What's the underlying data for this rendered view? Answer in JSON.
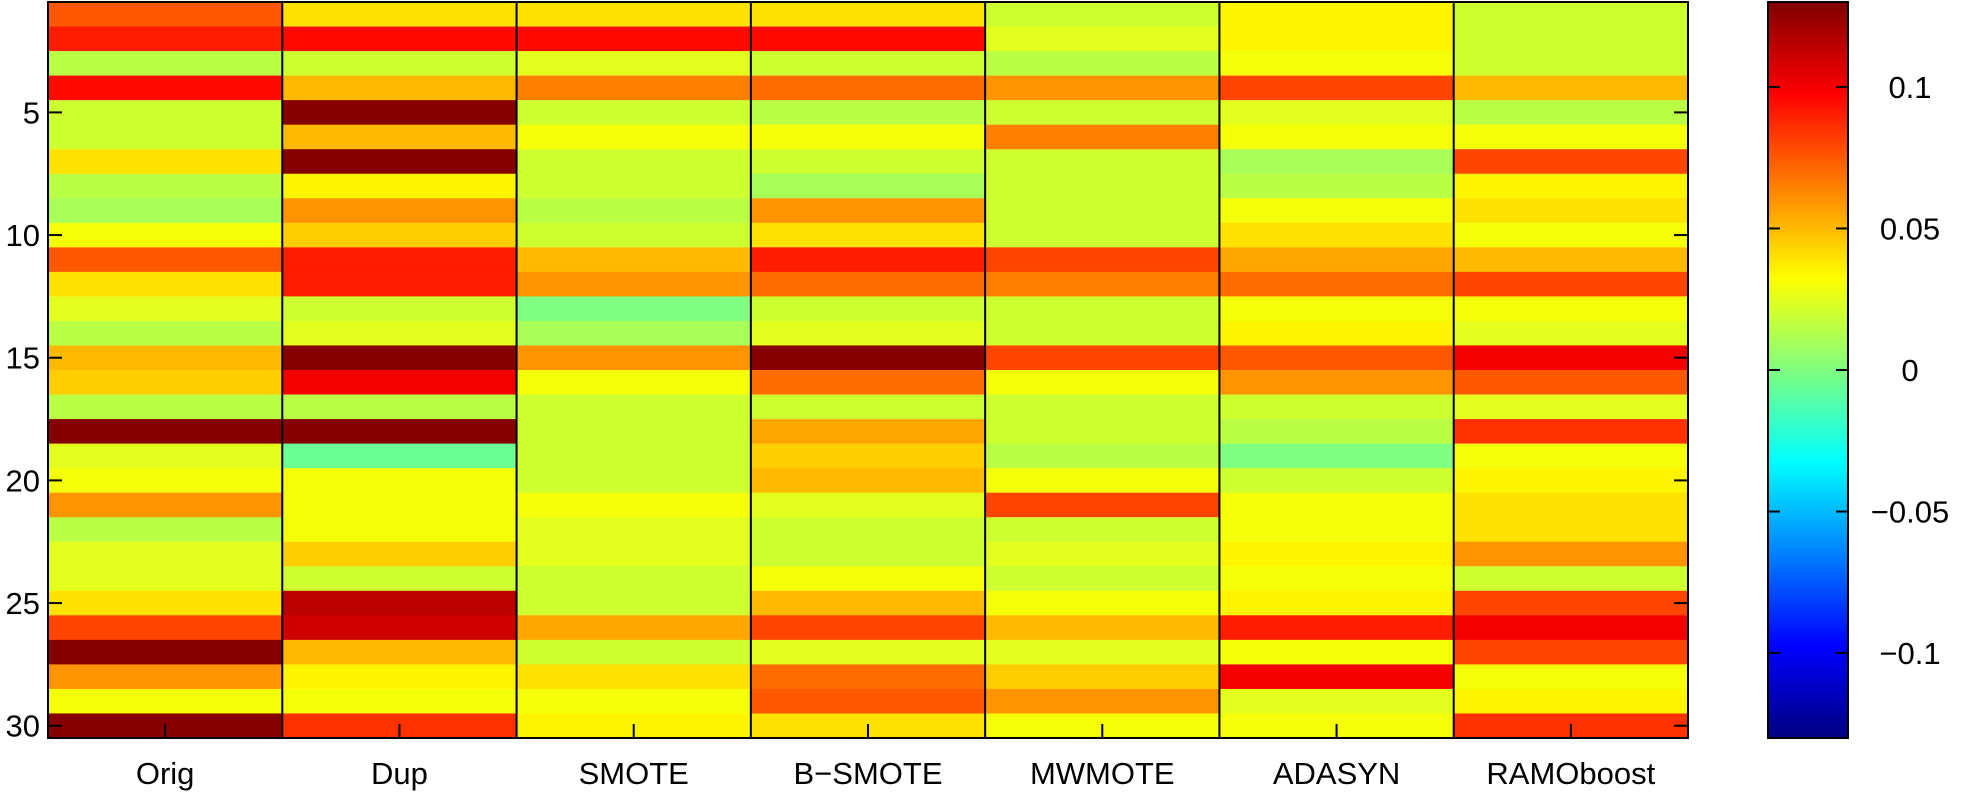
{
  "chart_data": {
    "type": "heatmap",
    "title": "",
    "xlabel": "",
    "ylabel": "",
    "columns": [
      "Orig",
      "Dup",
      "SMOTE",
      "B−SMOTE",
      "MWMOTE",
      "ADASYN",
      "RAMOboost"
    ],
    "rows": [
      1,
      2,
      3,
      4,
      5,
      6,
      7,
      8,
      9,
      10,
      11,
      12,
      13,
      14,
      15,
      16,
      17,
      18,
      19,
      20,
      21,
      22,
      23,
      24,
      25,
      26,
      27,
      28,
      29,
      30
    ],
    "y_ticks": [
      5,
      10,
      15,
      20,
      25,
      30
    ],
    "values": [
      [
        0.075,
        0.04,
        0.04,
        0.04,
        0.02,
        0.035,
        0.02
      ],
      [
        0.09,
        0.095,
        0.095,
        0.095,
        0.025,
        0.035,
        0.02
      ],
      [
        0.015,
        0.02,
        0.025,
        0.02,
        0.015,
        0.03,
        0.02
      ],
      [
        0.095,
        0.05,
        0.065,
        0.07,
        0.06,
        0.08,
        0.05
      ],
      [
        0.02,
        0.128,
        0.02,
        0.015,
        0.02,
        0.025,
        0.015
      ],
      [
        0.02,
        0.05,
        0.03,
        0.03,
        0.065,
        0.03,
        0.03
      ],
      [
        0.04,
        0.128,
        0.02,
        0.02,
        0.02,
        0.01,
        0.08
      ],
      [
        0.015,
        0.035,
        0.02,
        0.01,
        0.02,
        0.015,
        0.035
      ],
      [
        0.01,
        0.06,
        0.015,
        0.06,
        0.02,
        0.03,
        0.04
      ],
      [
        0.03,
        0.045,
        0.02,
        0.04,
        0.02,
        0.04,
        0.03
      ],
      [
        0.075,
        0.09,
        0.05,
        0.09,
        0.08,
        0.055,
        0.05
      ],
      [
        0.04,
        0.09,
        0.06,
        0.07,
        0.065,
        0.07,
        0.08
      ],
      [
        0.025,
        0.02,
        0.0,
        0.02,
        0.02,
        0.03,
        0.03
      ],
      [
        0.015,
        0.025,
        0.01,
        0.025,
        0.02,
        0.035,
        0.025
      ],
      [
        0.05,
        0.128,
        0.06,
        0.128,
        0.08,
        0.075,
        0.1
      ],
      [
        0.045,
        0.1,
        0.03,
        0.07,
        0.03,
        0.06,
        0.075
      ],
      [
        0.015,
        0.015,
        0.02,
        0.02,
        0.02,
        0.02,
        0.025
      ],
      [
        0.128,
        0.128,
        0.02,
        0.055,
        0.02,
        0.015,
        0.085
      ],
      [
        0.025,
        -0.005,
        0.02,
        0.045,
        0.015,
        0.0,
        0.03
      ],
      [
        0.03,
        0.03,
        0.02,
        0.05,
        0.03,
        0.02,
        0.035
      ],
      [
        0.06,
        0.03,
        0.03,
        0.025,
        0.08,
        0.03,
        0.04
      ],
      [
        0.015,
        0.03,
        0.025,
        0.02,
        0.02,
        0.03,
        0.04
      ],
      [
        0.025,
        0.045,
        0.025,
        0.02,
        0.025,
        0.035,
        0.06
      ],
      [
        0.025,
        0.02,
        0.02,
        0.03,
        0.02,
        0.03,
        0.02
      ],
      [
        0.04,
        0.115,
        0.02,
        0.05,
        0.03,
        0.035,
        0.08
      ],
      [
        0.08,
        0.11,
        0.055,
        0.08,
        0.05,
        0.09,
        0.1
      ],
      [
        0.128,
        0.05,
        0.02,
        0.025,
        0.025,
        0.03,
        0.08
      ],
      [
        0.06,
        0.035,
        0.04,
        0.07,
        0.045,
        0.1,
        0.03
      ],
      [
        0.03,
        0.03,
        0.03,
        0.075,
        0.06,
        0.025,
        0.035
      ],
      [
        0.128,
        0.085,
        0.035,
        0.04,
        0.03,
        0.03,
        0.085
      ]
    ],
    "colorbar": {
      "min": -0.13,
      "max": 0.13,
      "ticks": [
        0.1,
        0.05,
        0,
        -0.05,
        -0.1
      ],
      "tick_labels": [
        "0.1",
        "0.05",
        "0",
        "−0.05",
        "−0.1"
      ],
      "colormap": "jet"
    },
    "grid": false
  }
}
